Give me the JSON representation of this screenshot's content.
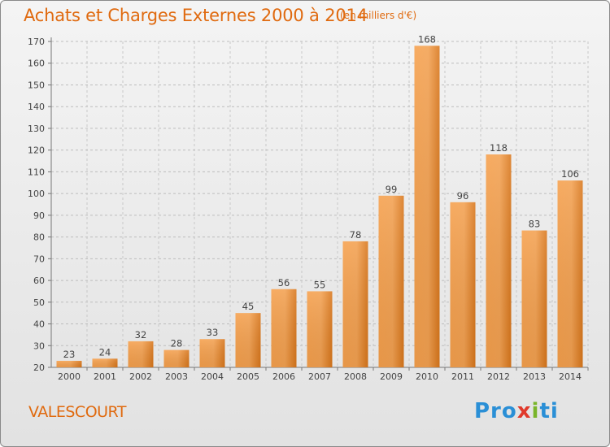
{
  "title": "Achats et Charges Externes 2000 à 2014",
  "subtitle": "(en milliers d'€)",
  "town": "VALESCOURT",
  "logo": {
    "p1": "Pro",
    "p2": "x",
    "p3": "i",
    "p4": "ti"
  },
  "colors": {
    "accent": "#e06a0f",
    "bar_light": "#f7a452",
    "bar_dark": "#d9761a"
  },
  "chart_data": {
    "type": "bar",
    "title": "Achats et Charges Externes 2000 à 2014",
    "subtitle": "(en milliers d'€)",
    "categories": [
      "2000",
      "2001",
      "2002",
      "2003",
      "2004",
      "2005",
      "2006",
      "2007",
      "2008",
      "2009",
      "2010",
      "2011",
      "2012",
      "2013",
      "2014"
    ],
    "values": [
      23,
      24,
      32,
      28,
      33,
      45,
      56,
      55,
      78,
      99,
      168,
      96,
      118,
      83,
      106
    ],
    "ylim": [
      20,
      170
    ],
    "yticks": [
      20,
      30,
      40,
      50,
      60,
      70,
      80,
      90,
      100,
      110,
      120,
      130,
      140,
      150,
      160,
      170
    ],
    "grid": true,
    "data_labels": true
  }
}
